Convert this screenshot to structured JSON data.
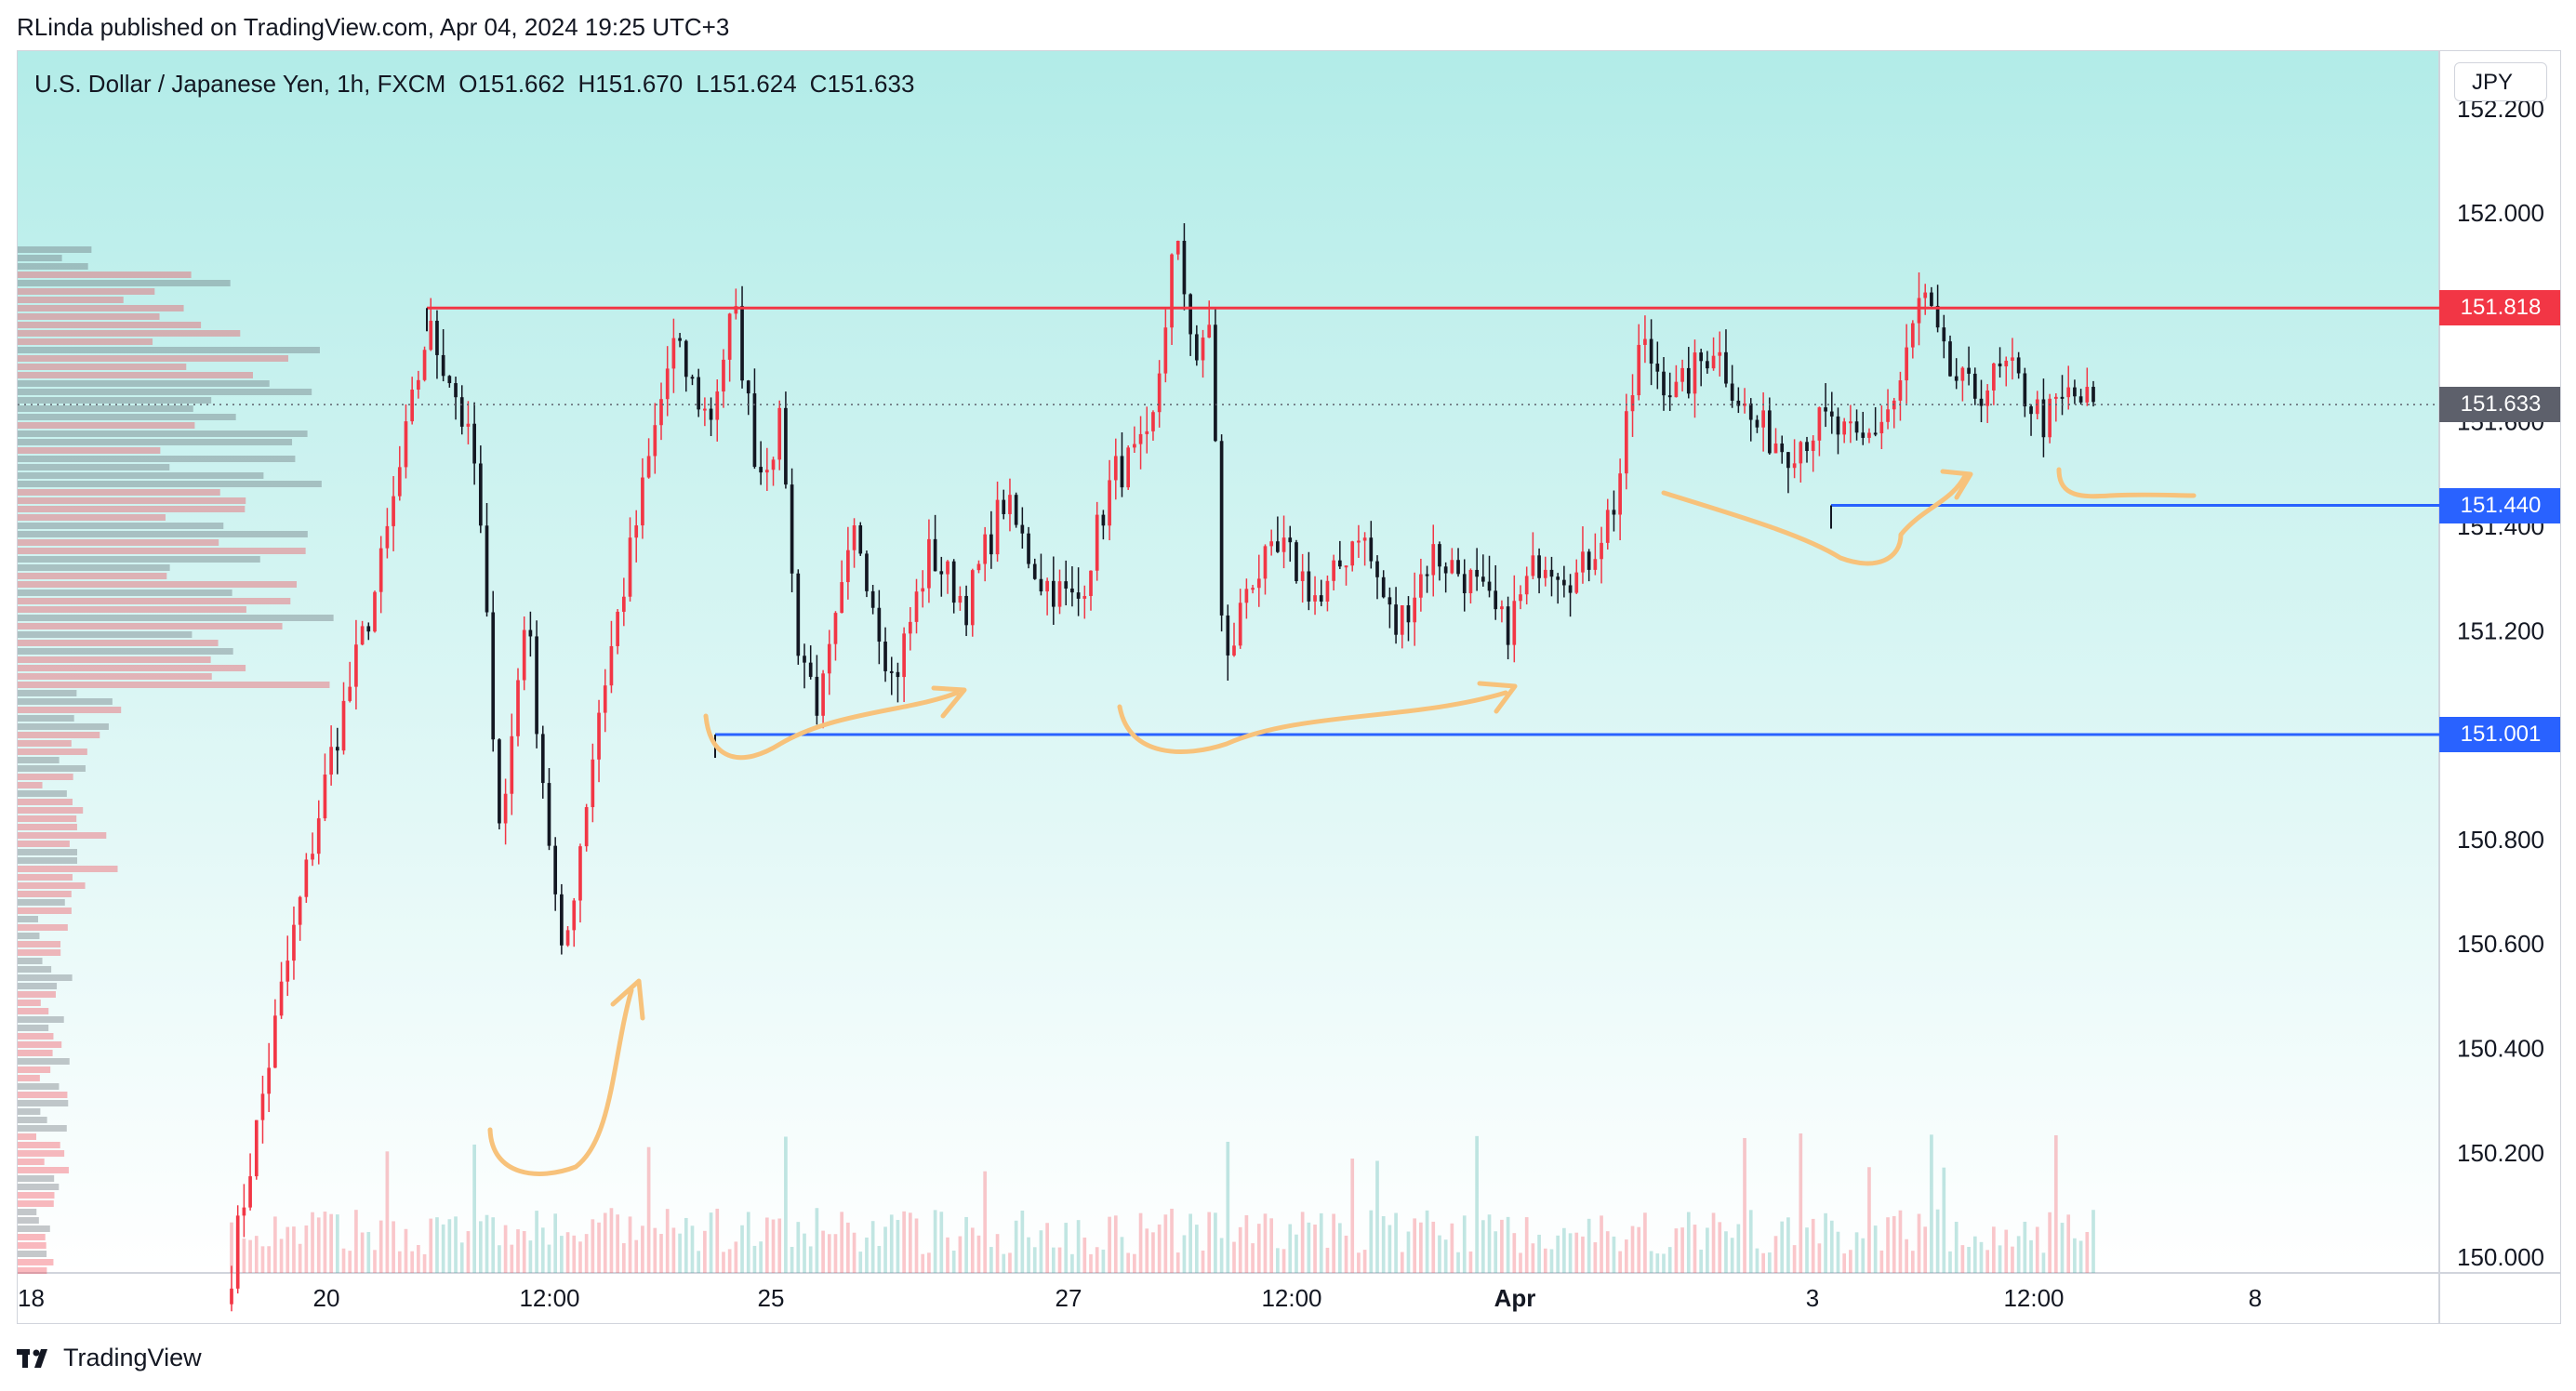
{
  "publisher_line": "RLinda published on TradingView.com, Apr 04, 2024 19:25 UTC+3",
  "header": {
    "symbol_title": "U.S. Dollar / Japanese Yen, 1h, FXCM",
    "open": "O151.662",
    "high": "H151.670",
    "low": "L151.624",
    "close": "C151.633"
  },
  "currency_button": "JPY",
  "footer_brand": "TradingView",
  "colors": {
    "up_candle": "#f23645",
    "down_candle": "#131722",
    "resistance_line": "#f23645",
    "support_line": "#2962ff",
    "annotation": "#f7c27b",
    "background_top": "#b2ece8",
    "background_bottom": "#ffffff"
  },
  "chart_data": {
    "type": "candlestick",
    "instrument": "USDJPY",
    "timeframe": "1h",
    "y_axis": {
      "ticks": [
        "152.200",
        "152.000",
        "151.600",
        "151.400",
        "151.200",
        "150.800",
        "150.600",
        "150.400",
        "150.200",
        "150.000"
      ],
      "tick_values": [
        152.2,
        152.0,
        151.6,
        151.4,
        151.2,
        150.8,
        150.6,
        150.4,
        150.2,
        150.0
      ],
      "range": [
        149.97,
        152.31
      ]
    },
    "x_axis": {
      "ticks": [
        "18",
        "20",
        "12:00",
        "25",
        "27",
        "12:00",
        "Apr",
        "3",
        "12:00",
        "8"
      ]
    },
    "price_levels": [
      {
        "value": 151.818,
        "label": "151.818",
        "style": "resistance",
        "color": "#f23645"
      },
      {
        "value": 151.633,
        "label": "151.633",
        "style": "last-price",
        "color": "#5d606b"
      },
      {
        "value": 151.44,
        "label": "151.440",
        "style": "support",
        "color": "#2962ff"
      },
      {
        "value": 151.001,
        "label": "151.001",
        "style": "support",
        "color": "#2962ff"
      }
    ],
    "close_path": [
      [
        0,
        149.98
      ],
      [
        4,
        150.5
      ],
      [
        8,
        150.95
      ],
      [
        12,
        151.3
      ],
      [
        16,
        151.78
      ],
      [
        18,
        151.68
      ],
      [
        20,
        151.5
      ],
      [
        22,
        150.8
      ],
      [
        24,
        151.25
      ],
      [
        27,
        150.55
      ],
      [
        30,
        151.05
      ],
      [
        33,
        151.4
      ],
      [
        36,
        151.75
      ],
      [
        39,
        151.6
      ],
      [
        41,
        151.82
      ],
      [
        43,
        151.5
      ],
      [
        45,
        151.6
      ],
      [
        46,
        151.2
      ],
      [
        48,
        151.05
      ],
      [
        51,
        151.4
      ],
      [
        54,
        151.1
      ],
      [
        57,
        151.35
      ],
      [
        60,
        151.25
      ],
      [
        63,
        151.45
      ],
      [
        66,
        151.3
      ],
      [
        69,
        151.25
      ],
      [
        72,
        151.5
      ],
      [
        75,
        151.55
      ],
      [
        77,
        151.95
      ],
      [
        79,
        151.7
      ],
      [
        80,
        151.8
      ],
      [
        81,
        151.1
      ],
      [
        83,
        151.3
      ],
      [
        86,
        151.35
      ],
      [
        89,
        151.25
      ],
      [
        92,
        151.4
      ],
      [
        95,
        151.2
      ],
      [
        98,
        151.35
      ],
      [
        101,
        151.3
      ],
      [
        104,
        151.2
      ],
      [
        107,
        151.35
      ],
      [
        110,
        151.3
      ],
      [
        113,
        151.45
      ],
      [
        115,
        151.75
      ],
      [
        118,
        151.65
      ],
      [
        121,
        151.75
      ],
      [
        124,
        151.6
      ],
      [
        127,
        151.55
      ],
      [
        130,
        151.6
      ],
      [
        133,
        151.55
      ],
      [
        136,
        151.65
      ],
      [
        138,
        151.85
      ],
      [
        140,
        151.7
      ],
      [
        142,
        151.65
      ],
      [
        145,
        151.7
      ],
      [
        148,
        151.6
      ],
      [
        150,
        151.65
      ],
      [
        152,
        151.633
      ]
    ]
  }
}
